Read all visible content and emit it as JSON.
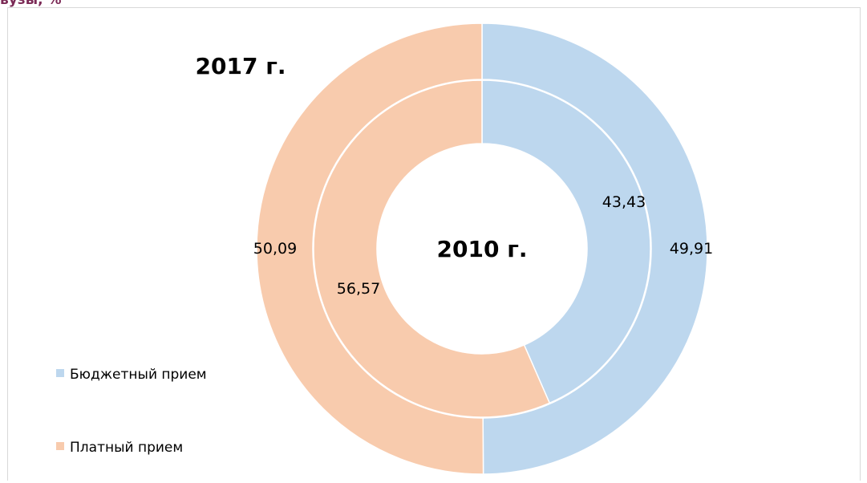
{
  "caption": "вузы, %",
  "chart_data": {
    "type": "donut",
    "title": "",
    "rings": [
      {
        "name": "2017 г.",
        "ring": "outer",
        "values": [
          49.91,
          50.09
        ],
        "labels": [
          "49,91",
          "50,09"
        ]
      },
      {
        "name": "2010 г.",
        "ring": "inner",
        "values": [
          43.43,
          56.57
        ],
        "labels": [
          "43,43",
          "56,57"
        ]
      }
    ],
    "categories": [
      "Бюджетный прием",
      "Платный прием"
    ],
    "colors": [
      "#bdd7ee",
      "#f8cbad"
    ],
    "legend": {
      "position": "left-bottom",
      "items": [
        "Бюджетный прием",
        "Платный прием"
      ]
    }
  }
}
